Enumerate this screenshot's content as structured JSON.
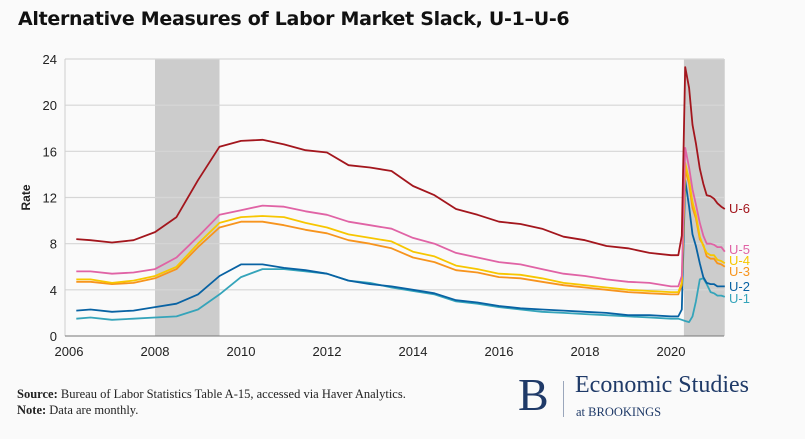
{
  "chart_data": {
    "type": "line",
    "title": "Alternative Measures of Labor Market Slack, U-1–U-6",
    "xlabel": "",
    "ylabel": "Rate",
    "xlim": [
      2006,
      2021.3
    ],
    "ylim": [
      0,
      24
    ],
    "xticks": [
      "2006",
      "2008",
      "2010",
      "2012",
      "2014",
      "2016",
      "2018",
      "2020"
    ],
    "yticks": [
      "0",
      "4",
      "8",
      "12",
      "16",
      "20",
      "24"
    ],
    "grid": true,
    "legend": "end-of-line labels, right",
    "shaded_periods": [
      [
        2008.0,
        2009.5
      ],
      [
        2020.3,
        2021.25
      ]
    ],
    "shade_color": "#cccccc",
    "x": [
      2006.17,
      2006.5,
      2007.0,
      2007.5,
      2008.0,
      2008.5,
      2009.0,
      2009.5,
      2010.0,
      2010.5,
      2011.0,
      2011.5,
      2012.0,
      2012.5,
      2013.0,
      2013.5,
      2014.0,
      2014.5,
      2015.0,
      2015.5,
      2016.0,
      2016.5,
      2017.0,
      2017.5,
      2018.0,
      2018.5,
      2019.0,
      2019.5,
      2020.0,
      2020.17,
      2020.25,
      2020.33,
      2020.42,
      2020.5,
      2020.58,
      2020.67,
      2020.75,
      2020.83,
      2020.92,
      2021.0,
      2021.08,
      2021.17,
      2021.25
    ],
    "series": [
      {
        "name": "U-6",
        "color": "#a3161d",
        "values": [
          8.4,
          8.3,
          8.1,
          8.3,
          9.0,
          10.3,
          13.5,
          16.4,
          16.9,
          17.0,
          16.6,
          16.1,
          15.9,
          14.8,
          14.6,
          14.3,
          13.0,
          12.2,
          11.0,
          10.5,
          9.9,
          9.7,
          9.3,
          8.6,
          8.3,
          7.8,
          7.6,
          7.2,
          7.0,
          7.0,
          8.7,
          23.3,
          21.5,
          18.3,
          16.7,
          14.5,
          13.2,
          12.2,
          12.1,
          11.9,
          11.5,
          11.2,
          11.0
        ]
      },
      {
        "name": "U-5",
        "color": "#e063a5",
        "values": [
          5.6,
          5.6,
          5.4,
          5.5,
          5.8,
          6.8,
          8.6,
          10.5,
          10.9,
          11.3,
          11.2,
          10.8,
          10.5,
          9.9,
          9.6,
          9.3,
          8.5,
          8.0,
          7.2,
          6.8,
          6.4,
          6.2,
          5.8,
          5.4,
          5.2,
          4.9,
          4.7,
          4.6,
          4.3,
          4.3,
          5.2,
          16.3,
          14.6,
          12.7,
          11.4,
          9.8,
          8.7,
          8.0,
          8.0,
          7.9,
          7.7,
          7.7,
          7.3
        ]
      },
      {
        "name": "U-4",
        "color": "#f7c600",
        "values": [
          4.9,
          4.9,
          4.6,
          4.8,
          5.2,
          6.0,
          8.0,
          9.8,
          10.3,
          10.4,
          10.3,
          9.8,
          9.4,
          8.8,
          8.5,
          8.2,
          7.3,
          6.9,
          6.1,
          5.8,
          5.4,
          5.3,
          5.0,
          4.6,
          4.4,
          4.2,
          4.0,
          3.9,
          3.8,
          3.8,
          4.6,
          15.0,
          13.5,
          11.6,
          10.5,
          8.6,
          7.8,
          7.2,
          7.0,
          7.0,
          6.6,
          6.5,
          6.3
        ]
      },
      {
        "name": "U-3",
        "color": "#f7941d",
        "values": [
          4.7,
          4.7,
          4.5,
          4.6,
          5.0,
          5.8,
          7.7,
          9.4,
          9.9,
          9.9,
          9.6,
          9.2,
          8.9,
          8.3,
          8.0,
          7.6,
          6.8,
          6.4,
          5.7,
          5.5,
          5.1,
          5.0,
          4.7,
          4.4,
          4.2,
          4.0,
          3.8,
          3.7,
          3.6,
          3.6,
          4.4,
          14.4,
          13.2,
          11.1,
          10.2,
          8.4,
          7.9,
          6.9,
          6.7,
          6.7,
          6.3,
          6.2,
          6.0
        ]
      },
      {
        "name": "U-2",
        "color": "#0862a3",
        "values": [
          2.2,
          2.3,
          2.1,
          2.2,
          2.5,
          2.8,
          3.6,
          5.2,
          6.2,
          6.2,
          5.9,
          5.7,
          5.4,
          4.8,
          4.5,
          4.3,
          4.0,
          3.7,
          3.1,
          2.9,
          2.6,
          2.4,
          2.3,
          2.2,
          2.1,
          2.0,
          1.8,
          1.8,
          1.7,
          1.7,
          2.3,
          13.5,
          11.2,
          8.8,
          7.8,
          6.3,
          5.1,
          4.6,
          4.5,
          4.5,
          4.3,
          4.3,
          4.3
        ]
      },
      {
        "name": "U-1",
        "color": "#35a4ba",
        "values": [
          1.5,
          1.6,
          1.4,
          1.5,
          1.6,
          1.7,
          2.3,
          3.6,
          5.1,
          5.8,
          5.8,
          5.6,
          5.4,
          4.8,
          4.6,
          4.2,
          3.9,
          3.6,
          3.0,
          2.8,
          2.5,
          2.3,
          2.1,
          2.0,
          1.9,
          1.8,
          1.7,
          1.6,
          1.5,
          1.5,
          1.4,
          1.3,
          1.2,
          1.7,
          3.0,
          4.9,
          5.0,
          4.5,
          3.8,
          3.7,
          3.5,
          3.5,
          3.4
        ]
      }
    ]
  },
  "footer": {
    "source_label": "Source:",
    "source_text": " Bureau of Labor Statistics Table A-15, accessed via Haver Analytics.",
    "note_label": "Note:",
    "note_text": " Data are monthly."
  },
  "logo": {
    "mark": "B",
    "name": "Economic Studies",
    "sub": "at BROOKINGS"
  }
}
